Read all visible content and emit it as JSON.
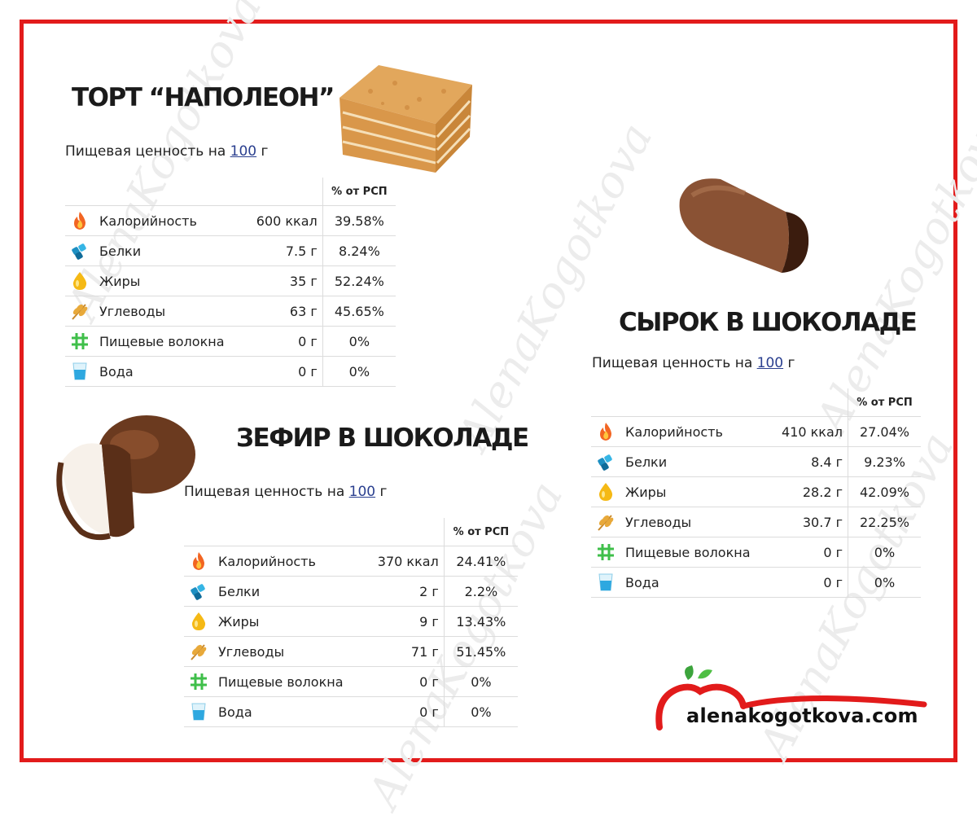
{
  "watermark": "AlenaKogotkova",
  "section1": {
    "title": "ТОРТ “НАПОЛЕОН”",
    "subtitle_prefix": "Пищевая ценность на",
    "subtitle_amount": "100",
    "subtitle_unit": "г",
    "col_header": "% от РСП",
    "rows": [
      {
        "icon": "fire-icon",
        "label": "Калорийность",
        "amount": "600 ккал",
        "percent": "39.58%"
      },
      {
        "icon": "protein-icon",
        "label": "Белки",
        "amount": "7.5 г",
        "percent": "8.24%"
      },
      {
        "icon": "fat-drop-icon",
        "label": "Жиры",
        "amount": "35 г",
        "percent": "52.24%"
      },
      {
        "icon": "wheat-icon",
        "label": "Углеводы",
        "amount": "63 г",
        "percent": "45.65%"
      },
      {
        "icon": "fiber-grid-icon",
        "label": "Пищевые волокна",
        "amount": "0 г",
        "percent": "0%"
      },
      {
        "icon": "water-glass-icon",
        "label": "Вода",
        "amount": "0 г",
        "percent": "0%"
      }
    ]
  },
  "section2": {
    "title": "ЗЕФИР В ШОКОЛАДЕ",
    "subtitle_prefix": "Пищевая ценность на",
    "subtitle_amount": "100",
    "subtitle_unit": "г",
    "col_header": "% от РСП",
    "rows": [
      {
        "icon": "fire-icon",
        "label": "Калорийность",
        "amount": "370 ккал",
        "percent": "24.41%"
      },
      {
        "icon": "protein-icon",
        "label": "Белки",
        "amount": "2 г",
        "percent": "2.2%"
      },
      {
        "icon": "fat-drop-icon",
        "label": "Жиры",
        "amount": "9 г",
        "percent": "13.43%"
      },
      {
        "icon": "wheat-icon",
        "label": "Углеводы",
        "amount": "71 г",
        "percent": "51.45%"
      },
      {
        "icon": "fiber-grid-icon",
        "label": "Пищевые волокна",
        "amount": "0 г",
        "percent": "0%"
      },
      {
        "icon": "water-glass-icon",
        "label": "Вода",
        "amount": "0 г",
        "percent": "0%"
      }
    ]
  },
  "section3": {
    "title": "СЫРОК В ШОКОЛАДЕ",
    "subtitle_prefix": "Пищевая ценность на",
    "subtitle_amount": "100",
    "subtitle_unit": "г",
    "col_header": "% от РСП",
    "rows": [
      {
        "icon": "fire-icon",
        "label": "Калорийность",
        "amount": "410 ккал",
        "percent": "27.04%"
      },
      {
        "icon": "protein-icon",
        "label": "Белки",
        "amount": "8.4 г",
        "percent": "9.23%"
      },
      {
        "icon": "fat-drop-icon",
        "label": "Жиры",
        "amount": "28.2 г",
        "percent": "42.09%"
      },
      {
        "icon": "wheat-icon",
        "label": "Углеводы",
        "amount": "30.7 г",
        "percent": "22.25%"
      },
      {
        "icon": "fiber-grid-icon",
        "label": "Пищевые волокна",
        "amount": "0 г",
        "percent": "0%"
      },
      {
        "icon": "water-glass-icon",
        "label": "Вода",
        "amount": "0 г",
        "percent": "0%"
      }
    ]
  },
  "brand": {
    "site": "alenakogotkova.com"
  },
  "colors": {
    "frame": "#e21b1b",
    "link": "#2a3f8f",
    "chocolate": "#7a4a2c",
    "cake": "#e2a75c"
  }
}
